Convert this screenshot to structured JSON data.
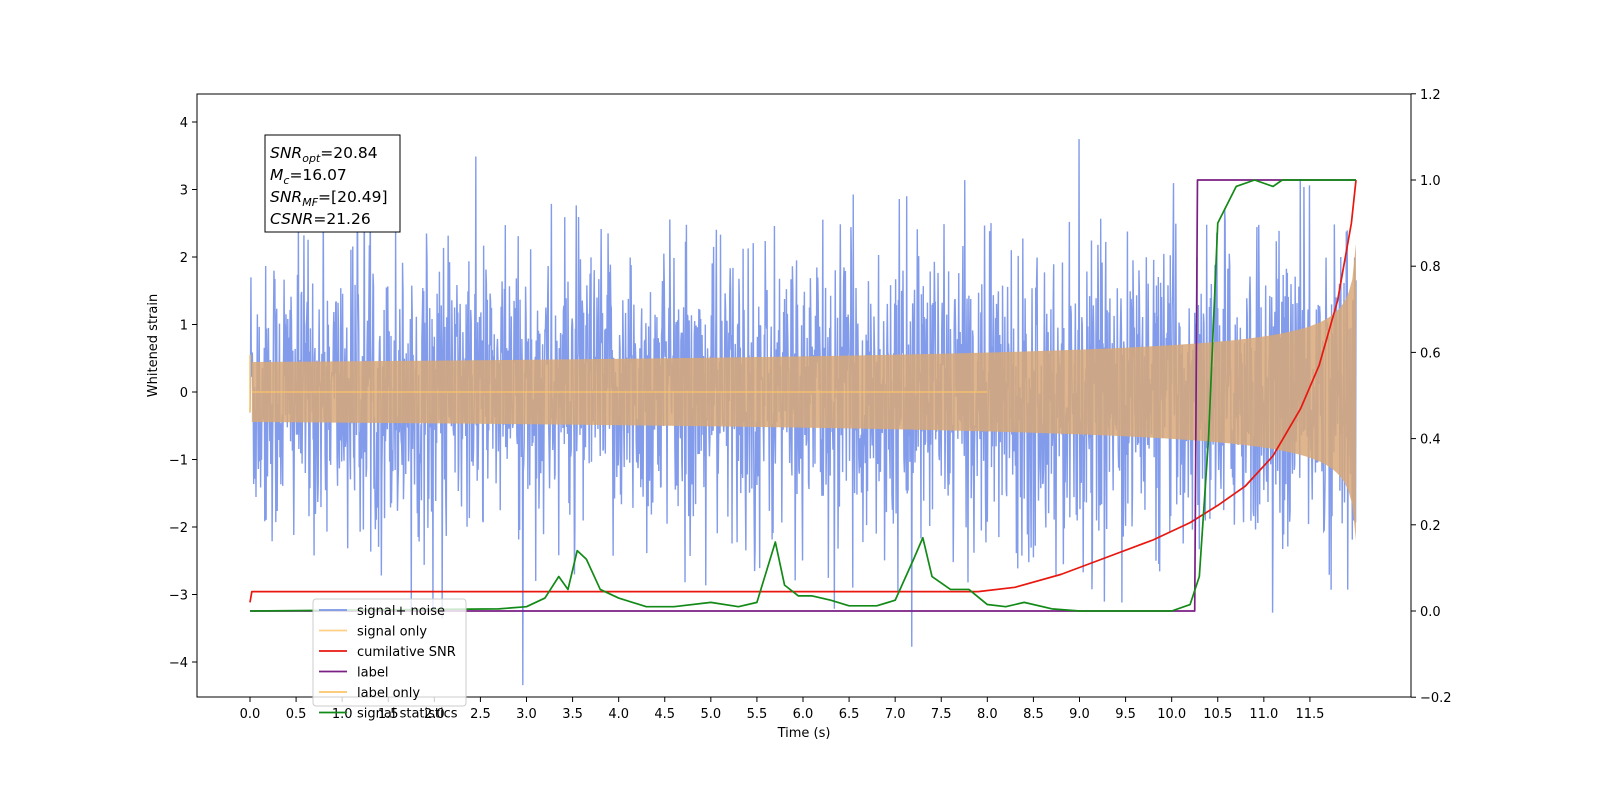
{
  "chart_data": {
    "type": "line",
    "xlabel": "Time (s)",
    "ylabel": "Whitened strain",
    "xlim": [
      -0.6,
      12.6
    ],
    "ylim": [
      -4.5,
      4.4
    ],
    "y2lim": [
      -0.2,
      1.2
    ],
    "x_ticks": [
      "0.0",
      "0.5",
      "1.0",
      "1.5",
      "2.0",
      "2.5",
      "3.0",
      "3.5",
      "4.0",
      "4.5",
      "5.0",
      "5.5",
      "6.0",
      "6.5",
      "7.0",
      "7.5",
      "8.0",
      "8.5",
      "9.0",
      "9.5",
      "10.0",
      "10.5",
      "11.0",
      "11.5"
    ],
    "y_ticks": [
      "4",
      "3",
      "2",
      "1",
      "0",
      "−1",
      "−2",
      "−3",
      "−4"
    ],
    "y2_ticks": [
      "1.2",
      "1.0",
      "0.8",
      "0.6",
      "0.4",
      "0.2",
      "0.0",
      "−0.2"
    ],
    "grid": false,
    "legend_position": "bottom-left",
    "annotation": {
      "lines": [
        {
          "sym": "SNR",
          "sub": "opt",
          "value": "=20.84"
        },
        {
          "sym": "M",
          "sub": "c",
          "value": "=16.07"
        },
        {
          "sym": "SNR",
          "sub": "MF",
          "value": "=[20.49]"
        },
        {
          "sym": "CSNR",
          "sub": "",
          "value": "=21.26"
        }
      ]
    },
    "series": [
      {
        "name": "signal+ noise",
        "axis": "left",
        "color": "#7b96e9",
        "kind": "noise",
        "sigma": 1.0,
        "x_range": [
          0.0,
          12.0
        ]
      },
      {
        "name": "signal only",
        "axis": "left",
        "color": "#fcc468",
        "kind": "chirp",
        "x_range": [
          0.0,
          12.0
        ],
        "peak_amplitude": 2.2
      },
      {
        "name": "cumilative SNR",
        "axis": "right",
        "color": "#e8170f",
        "x": [
          0.0,
          0.02,
          7.9,
          8.3,
          8.8,
          9.3,
          9.8,
          10.2,
          10.5,
          10.8,
          11.1,
          11.4,
          11.6,
          11.8,
          11.95,
          12.0
        ],
        "y": [
          0.02,
          0.045,
          0.045,
          0.055,
          0.085,
          0.125,
          0.165,
          0.205,
          0.245,
          0.29,
          0.36,
          0.47,
          0.57,
          0.72,
          0.9,
          1.0
        ]
      },
      {
        "name": "label",
        "axis": "right",
        "color": "#7b1f85",
        "x": [
          0.0,
          10.25,
          10.28,
          12.0
        ],
        "y": [
          0.0,
          0.0,
          1.0,
          1.0
        ]
      },
      {
        "name": "label only",
        "axis": "right",
        "color": "#fcc468",
        "hidden_behind": true,
        "x": [],
        "y": []
      },
      {
        "name": "signal statistics",
        "axis": "right",
        "color": "#138a17",
        "x": [
          0.0,
          2.7,
          3.0,
          3.2,
          3.35,
          3.45,
          3.55,
          3.65,
          3.8,
          4.0,
          4.3,
          4.6,
          5.0,
          5.3,
          5.5,
          5.6,
          5.7,
          5.8,
          5.95,
          6.1,
          6.3,
          6.5,
          6.8,
          7.0,
          7.2,
          7.3,
          7.4,
          7.6,
          7.8,
          8.0,
          8.2,
          8.4,
          8.7,
          9.0,
          9.5,
          10.0,
          10.2,
          10.3,
          10.4,
          10.5,
          10.7,
          10.9,
          11.1,
          11.2,
          11.4,
          12.0
        ],
        "y": [
          0.0,
          0.005,
          0.01,
          0.03,
          0.08,
          0.05,
          0.14,
          0.12,
          0.05,
          0.03,
          0.01,
          0.01,
          0.02,
          0.01,
          0.02,
          0.09,
          0.16,
          0.06,
          0.035,
          0.035,
          0.025,
          0.012,
          0.012,
          0.025,
          0.12,
          0.17,
          0.08,
          0.05,
          0.05,
          0.015,
          0.01,
          0.02,
          0.005,
          0.0,
          0.0,
          0.0,
          0.015,
          0.08,
          0.4,
          0.9,
          0.985,
          1.0,
          0.985,
          1.0,
          1.0,
          1.0
        ]
      }
    ]
  }
}
